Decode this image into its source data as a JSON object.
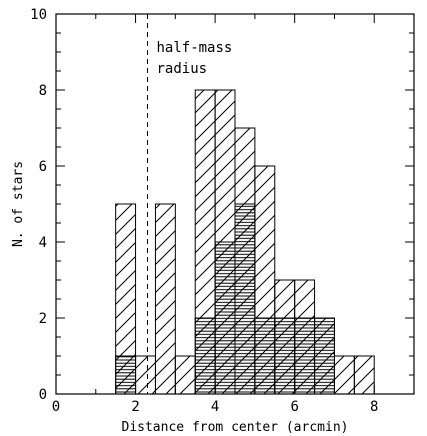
{
  "chart_data": {
    "type": "bar",
    "title": "",
    "xlabel": "Distance from center (arcmin)",
    "ylabel": "N. of stars",
    "xlim": [
      0,
      9
    ],
    "ylim": [
      0,
      10
    ],
    "x_ticks": [
      "0",
      "2",
      "4",
      "6",
      "8"
    ],
    "y_ticks": [
      "0",
      "2",
      "4",
      "6",
      "8",
      "10"
    ],
    "bin_width": 0.5,
    "series": [
      {
        "hatch": "diagonal",
        "bins": [
          {
            "x0": 1.5,
            "x1": 2.0,
            "value": 5
          },
          {
            "x0": 2.0,
            "x1": 2.5,
            "value": 1
          },
          {
            "x0": 2.5,
            "x1": 3.0,
            "value": 5
          },
          {
            "x0": 3.0,
            "x1": 3.5,
            "value": 1
          },
          {
            "x0": 3.5,
            "x1": 4.0,
            "value": 8
          },
          {
            "x0": 4.0,
            "x1": 4.5,
            "value": 8
          },
          {
            "x0": 4.5,
            "x1": 5.0,
            "value": 7
          },
          {
            "x0": 5.0,
            "x1": 5.5,
            "value": 6
          },
          {
            "x0": 5.5,
            "x1": 6.0,
            "value": 3
          },
          {
            "x0": 6.0,
            "x1": 6.5,
            "value": 3
          },
          {
            "x0": 6.5,
            "x1": 7.0,
            "value": 2
          },
          {
            "x0": 7.0,
            "x1": 7.5,
            "value": 1
          },
          {
            "x0": 7.5,
            "x1": 8.0,
            "value": 1
          }
        ]
      },
      {
        "hatch": "horizontal",
        "bins": [
          {
            "x0": 1.5,
            "x1": 2.0,
            "value": 1
          },
          {
            "x0": 3.5,
            "x1": 4.0,
            "value": 2
          },
          {
            "x0": 4.0,
            "x1": 4.5,
            "value": 4
          },
          {
            "x0": 4.5,
            "x1": 5.0,
            "value": 5
          },
          {
            "x0": 5.0,
            "x1": 5.5,
            "value": 2
          },
          {
            "x0": 5.5,
            "x1": 6.0,
            "value": 2
          },
          {
            "x0": 6.0,
            "x1": 6.5,
            "value": 2
          },
          {
            "x0": 6.5,
            "x1": 7.0,
            "value": 2
          }
        ]
      }
    ],
    "annotation": {
      "x": 2.3,
      "line_style": "dashed",
      "lines": [
        "half-mass",
        "radius"
      ]
    }
  }
}
